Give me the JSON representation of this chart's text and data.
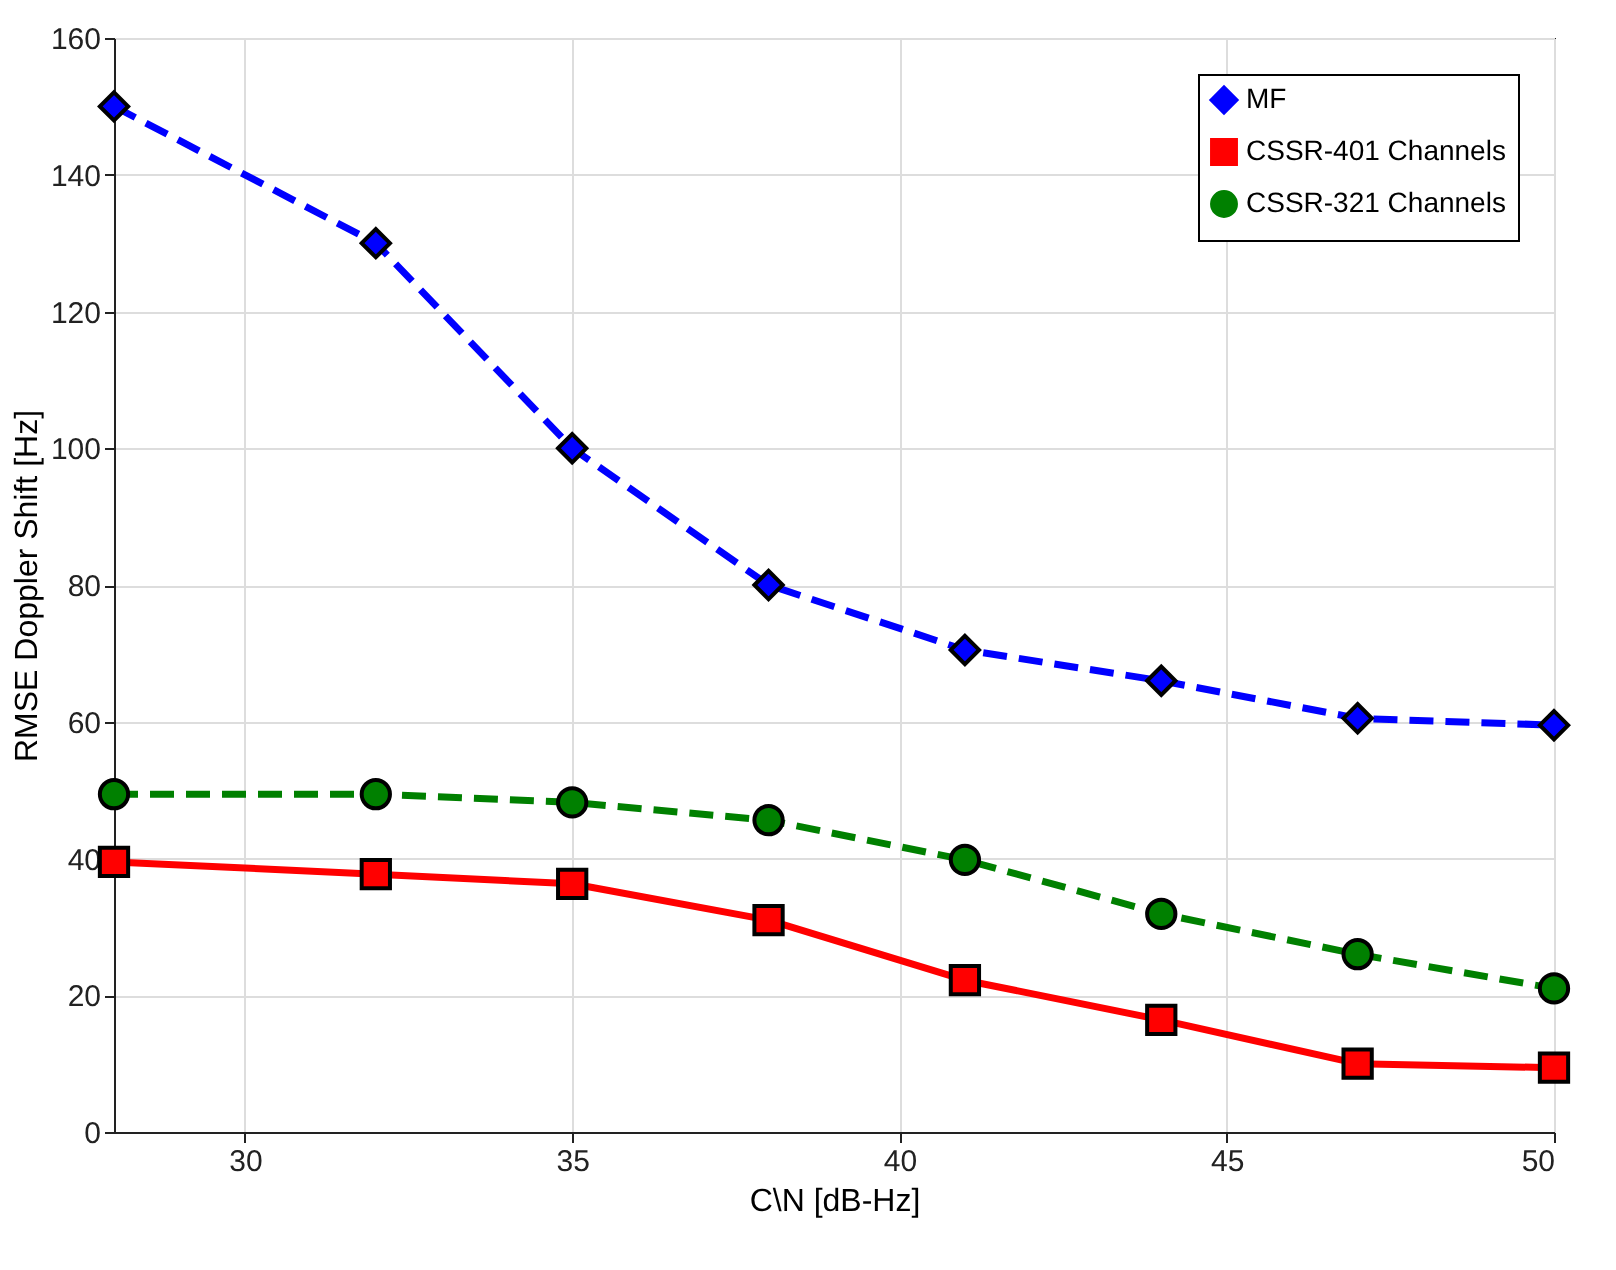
{
  "chart_data": {
    "type": "line",
    "xlabel": "C\\N [dB-Hz]",
    "ylabel": "RMSE Doppler Shift [Hz]",
    "x": [
      28,
      32,
      35,
      38,
      41,
      44,
      47,
      50
    ],
    "series": [
      {
        "name": "MF",
        "color": "#0000ff",
        "marker": "diamond",
        "line_style": "dashed",
        "values": [
          150,
          130,
          100,
          80,
          70.5,
          66,
          60.5,
          59.5
        ]
      },
      {
        "name": "CSSR-401 Channels",
        "color": "#ff0000",
        "marker": "square",
        "line_style": "solid",
        "values": [
          39.5,
          37.7,
          36.3,
          31,
          22.2,
          16.4,
          10,
          9.4
        ]
      },
      {
        "name": "CSSR-321 Channels",
        "color": "#008000",
        "marker": "circle",
        "line_style": "dashed",
        "values": [
          49.4,
          49.4,
          48.2,
          45.6,
          39.8,
          31.9,
          26,
          21
        ]
      }
    ],
    "xlim": [
      28,
      50
    ],
    "xticks": [
      30,
      35,
      40,
      45,
      50
    ],
    "ylim": [
      0,
      160
    ],
    "yticks": [
      0,
      20,
      40,
      60,
      80,
      100,
      120,
      140,
      160
    ],
    "grid": true,
    "legend": "top right"
  }
}
